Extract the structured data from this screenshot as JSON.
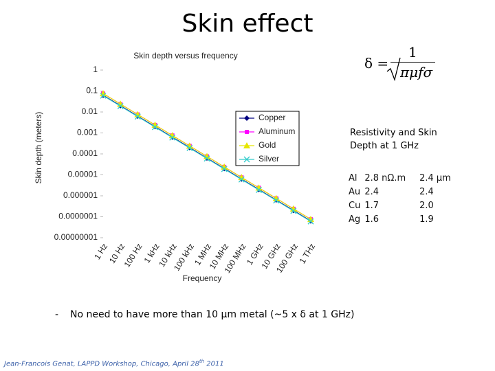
{
  "title": "Skin effect",
  "formula": {
    "lhs": "δ =",
    "numerator": "1",
    "denominator": "πμfσ"
  },
  "table": {
    "heading": "Resistivity and Skin Depth at 1 GHz",
    "rows": [
      [
        "Al",
        "2.8 nΩ.m",
        "2.4 μm"
      ],
      [
        "Au",
        "2.4",
        "2.4"
      ],
      [
        "Cu",
        "1.7",
        "2.0"
      ],
      [
        "Ag",
        "1.6",
        "1.9"
      ]
    ]
  },
  "bullet": {
    "marker": "-",
    "text": "No need to have more than 10 μm metal  (~5 x δ at 1 GHz)"
  },
  "footer": [
    "Jean-Francois Genat,  LAPPD Workshop, Chicago, April 28",
    "th",
    " 2011"
  ],
  "chart_data": {
    "type": "line",
    "title": "Skin depth versus frequency",
    "xlabel": "Frequency",
    "ylabel": "Skin depth (meters)",
    "categories": [
      "1 Hz",
      "10 Hz",
      "100 Hz",
      "1 kHz",
      "10 kHz",
      "100 kHz",
      "1 MHz",
      "10 MHz",
      "100 MHz",
      "1 GHz",
      "10 GHz",
      "100 GHz",
      "1 THz"
    ],
    "log_y": true,
    "ylim": [
      1e-08,
      1
    ],
    "yticks": [
      1,
      0.1,
      0.01,
      0.001,
      0.0001,
      1e-05,
      1e-06,
      {
        "value": 1e-07,
        "label": "0.0000001"
      },
      {
        "value": 1e-08,
        "label": "0.00000001"
      }
    ],
    "grid": false,
    "legend": "right",
    "series": [
      {
        "name": "Copper",
        "color": "#000080",
        "marker": "diamond",
        "values": [
          0.0632,
          0.02,
          0.00632,
          0.002,
          0.000632,
          0.0002,
          6.32e-05,
          2e-05,
          6.32e-06,
          2e-06,
          6.32e-07,
          2e-07,
          6.32e-08
        ]
      },
      {
        "name": "Aluminum",
        "color": "#ff00ff",
        "marker": "square",
        "values": [
          0.0759,
          0.024,
          0.00759,
          0.0024,
          0.000759,
          0.00024,
          7.59e-05,
          2.4e-05,
          7.59e-06,
          2.4e-06,
          7.59e-07,
          2.4e-07,
          7.59e-08
        ]
      },
      {
        "name": "Gold",
        "color": "#e6e600",
        "marker": "triangle",
        "values": [
          0.0759,
          0.024,
          0.00759,
          0.0024,
          0.000759,
          0.00024,
          7.59e-05,
          2.4e-05,
          7.59e-06,
          2.4e-06,
          7.59e-07,
          2.4e-07,
          7.59e-08
        ]
      },
      {
        "name": "Silver",
        "color": "#33cccc",
        "marker": "x",
        "values": [
          0.0601,
          0.019,
          0.00601,
          0.0019,
          0.000601,
          0.00019,
          6.01e-05,
          1.9e-05,
          6.01e-06,
          1.9e-06,
          6.01e-07,
          1.9e-07,
          6.01e-08
        ]
      }
    ]
  }
}
